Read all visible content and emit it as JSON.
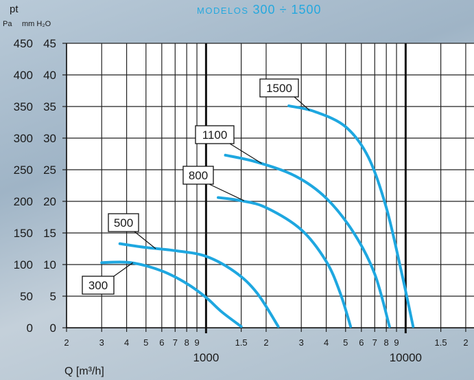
{
  "header": {
    "title_prefix": "MODELOS",
    "title_range": "300 ÷ 1500"
  },
  "chart_data": {
    "type": "line",
    "y_label_top": "pt",
    "y_units_pa": "Pa",
    "y_units_mm": "mm H₂O",
    "x_label": "Q [m³/h]",
    "x_scale": "log",
    "xlim": [
      200,
      22000
    ],
    "ylim_pa": [
      0,
      450
    ],
    "y_ticks_pa": [
      "0",
      "50",
      "100",
      "150",
      "200",
      "250",
      "300",
      "350",
      "400",
      "450"
    ],
    "y_ticks_mm": [
      "0",
      "5",
      "10",
      "15",
      "20",
      "25",
      "30",
      "35",
      "40",
      "45"
    ],
    "x_minor_ticks": [
      {
        "v": 200,
        "label": "2"
      },
      {
        "v": 300,
        "label": "3"
      },
      {
        "v": 400,
        "label": "4"
      },
      {
        "v": 500,
        "label": "5"
      },
      {
        "v": 600,
        "label": "6"
      },
      {
        "v": 700,
        "label": "7"
      },
      {
        "v": 800,
        "label": "8"
      },
      {
        "v": 900,
        "label": "9"
      },
      {
        "v": 1500,
        "label": "1.5"
      },
      {
        "v": 2000,
        "label": "2"
      },
      {
        "v": 3000,
        "label": "3"
      },
      {
        "v": 4000,
        "label": "4"
      },
      {
        "v": 5000,
        "label": "5"
      },
      {
        "v": 6000,
        "label": "6"
      },
      {
        "v": 7000,
        "label": "7"
      },
      {
        "v": 8000,
        "label": "8"
      },
      {
        "v": 9000,
        "label": "9"
      },
      {
        "v": 15000,
        "label": "1.5"
      },
      {
        "v": 20000,
        "label": "2"
      }
    ],
    "x_major_ticks": [
      {
        "v": 1000,
        "label": "1000"
      },
      {
        "v": 10000,
        "label": "10000"
      }
    ],
    "series": [
      {
        "name": "300",
        "color": "#1ea7e0",
        "points": [
          [
            300,
            103
          ],
          [
            420,
            103
          ],
          [
            600,
            90
          ],
          [
            800,
            70
          ],
          [
            1000,
            48
          ],
          [
            1200,
            25
          ],
          [
            1500,
            2
          ]
        ]
      },
      {
        "name": "500",
        "color": "#1ea7e0",
        "points": [
          [
            370,
            133
          ],
          [
            500,
            127
          ],
          [
            700,
            122
          ],
          [
            1000,
            113
          ],
          [
            1400,
            88
          ],
          [
            1800,
            55
          ],
          [
            2300,
            2
          ]
        ]
      },
      {
        "name": "800",
        "color": "#1ea7e0",
        "points": [
          [
            1150,
            206
          ],
          [
            1500,
            201
          ],
          [
            2000,
            190
          ],
          [
            3000,
            155
          ],
          [
            4000,
            105
          ],
          [
            4700,
            55
          ],
          [
            5300,
            2
          ]
        ]
      },
      {
        "name": "1100",
        "color": "#1ea7e0",
        "points": [
          [
            1250,
            273
          ],
          [
            1800,
            262
          ],
          [
            2800,
            240
          ],
          [
            4000,
            205
          ],
          [
            5500,
            150
          ],
          [
            7000,
            85
          ],
          [
            8300,
            2
          ]
        ]
      },
      {
        "name": "1500",
        "color": "#1ea7e0",
        "points": [
          [
            2600,
            351
          ],
          [
            3500,
            342
          ],
          [
            5000,
            318
          ],
          [
            6500,
            270
          ],
          [
            8000,
            190
          ],
          [
            9500,
            90
          ],
          [
            10900,
            2
          ]
        ]
      }
    ]
  }
}
